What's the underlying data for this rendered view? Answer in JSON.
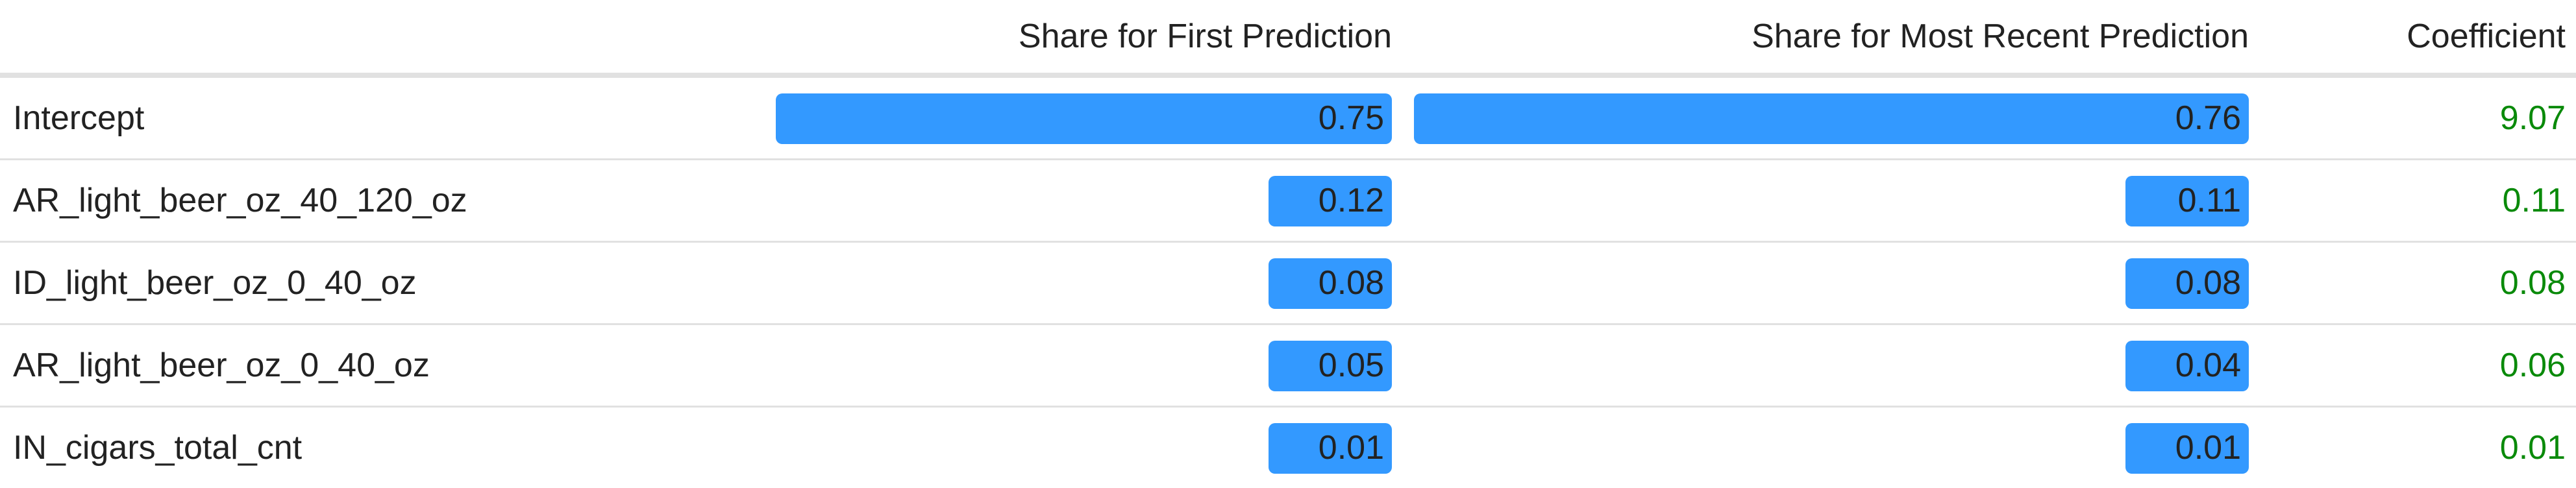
{
  "table": {
    "headers": {
      "name": "",
      "first": "Share for First Prediction",
      "recent": "Share for Most Recent Prediction",
      "coefficient": "Coefficient"
    }
  },
  "chart_data": {
    "type": "table",
    "columns": [
      "",
      "Share for First Prediction",
      "Share for Most Recent Prediction",
      "Coefficient"
    ],
    "bar_color": "#3399ff",
    "coefficient_color": "#0a8a0a",
    "bar_scale_max": 0.76,
    "rows": [
      {
        "name": "Intercept",
        "first": 0.75,
        "first_label": "0.75",
        "recent": 0.76,
        "recent_label": "0.76",
        "coefficient": "9.07"
      },
      {
        "name": "AR_light_beer_oz_40_120_oz",
        "first": 0.12,
        "first_label": "0.12",
        "recent": 0.11,
        "recent_label": "0.11",
        "coefficient": "0.11"
      },
      {
        "name": "ID_light_beer_oz_0_40_oz",
        "first": 0.08,
        "first_label": "0.08",
        "recent": 0.08,
        "recent_label": "0.08",
        "coefficient": "0.08"
      },
      {
        "name": "AR_light_beer_oz_0_40_oz",
        "first": 0.05,
        "first_label": "0.05",
        "recent": 0.04,
        "recent_label": "0.04",
        "coefficient": "0.06"
      },
      {
        "name": "IN_cigars_total_cnt",
        "first": 0.01,
        "first_label": "0.01",
        "recent": 0.01,
        "recent_label": "0.01",
        "coefficient": "0.01"
      }
    ]
  }
}
